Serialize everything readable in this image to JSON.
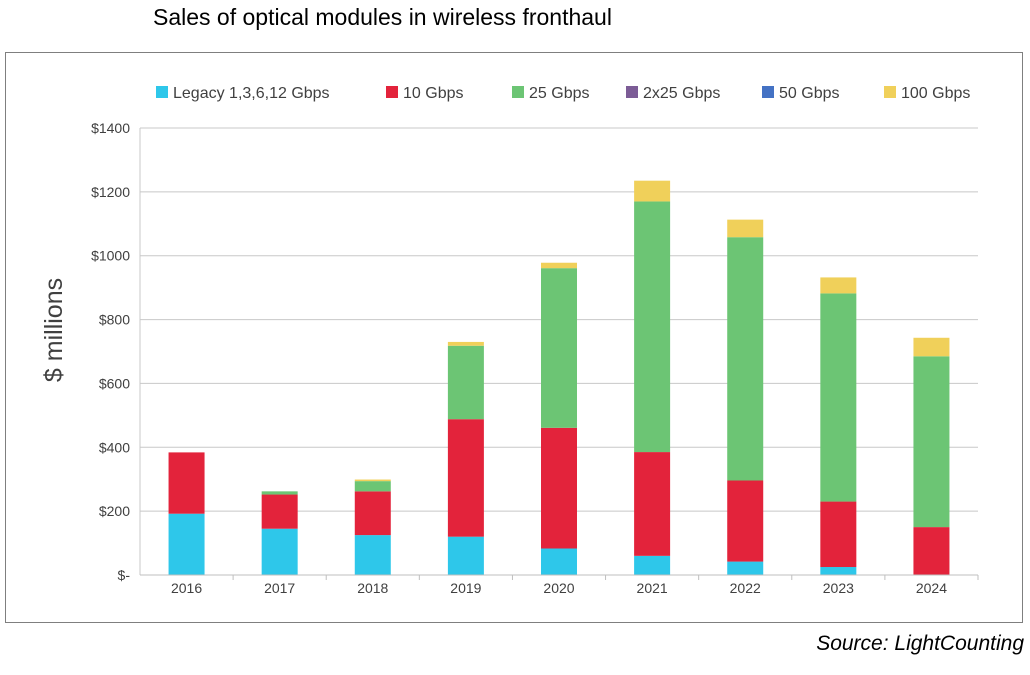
{
  "title": "Sales of optical modules in wireless fronthaul",
  "source": "Source: LightCounting",
  "colors": {
    "legacy": "#2ec7ea",
    "g10": "#e3233b",
    "g25": "#6cc574",
    "g2x25": "#7c5c96",
    "g50": "#4472c4",
    "g100": "#f0d05a",
    "grid": "#c8c8c8",
    "axis_text": "#404040"
  },
  "chart_data": {
    "type": "bar",
    "stacked": true,
    "title": "Sales of optical modules in wireless fronthaul",
    "xlabel": "",
    "ylabel": "$ millions",
    "ylim": [
      0,
      1400
    ],
    "yticks": [
      0,
      200,
      400,
      600,
      800,
      1000,
      1200,
      1400
    ],
    "ytick_labels": [
      "$-",
      "$200",
      "$400",
      "$600",
      "$800",
      "$1000",
      "$1200",
      "$1400"
    ],
    "grid": true,
    "legend_position": "top",
    "categories": [
      "2016",
      "2017",
      "2018",
      "2019",
      "2020",
      "2021",
      "2022",
      "2023",
      "2024"
    ],
    "series": [
      {
        "name": "Legacy 1,3,6,12 Gbps",
        "color": "#2ec7ea",
        "values": [
          192,
          145,
          125,
          120,
          83,
          60,
          42,
          25,
          0
        ]
      },
      {
        "name": "10 Gbps",
        "color": "#e3233b",
        "values": [
          192,
          107,
          137,
          368,
          378,
          325,
          254,
          205,
          150
        ]
      },
      {
        "name": "25 Gbps",
        "color": "#6cc574",
        "values": [
          0,
          10,
          32,
          230,
          500,
          785,
          762,
          652,
          535
        ]
      },
      {
        "name": "2x25 Gbps",
        "color": "#7c5c96",
        "values": [
          0,
          0,
          0,
          0,
          0,
          0,
          0,
          0,
          0
        ]
      },
      {
        "name": "50 Gbps",
        "color": "#4472c4",
        "values": [
          0,
          0,
          0,
          0,
          0,
          0,
          0,
          0,
          0
        ]
      },
      {
        "name": "100 Gbps",
        "color": "#f0d05a",
        "values": [
          0,
          0,
          5,
          12,
          17,
          65,
          55,
          50,
          58
        ]
      }
    ]
  }
}
